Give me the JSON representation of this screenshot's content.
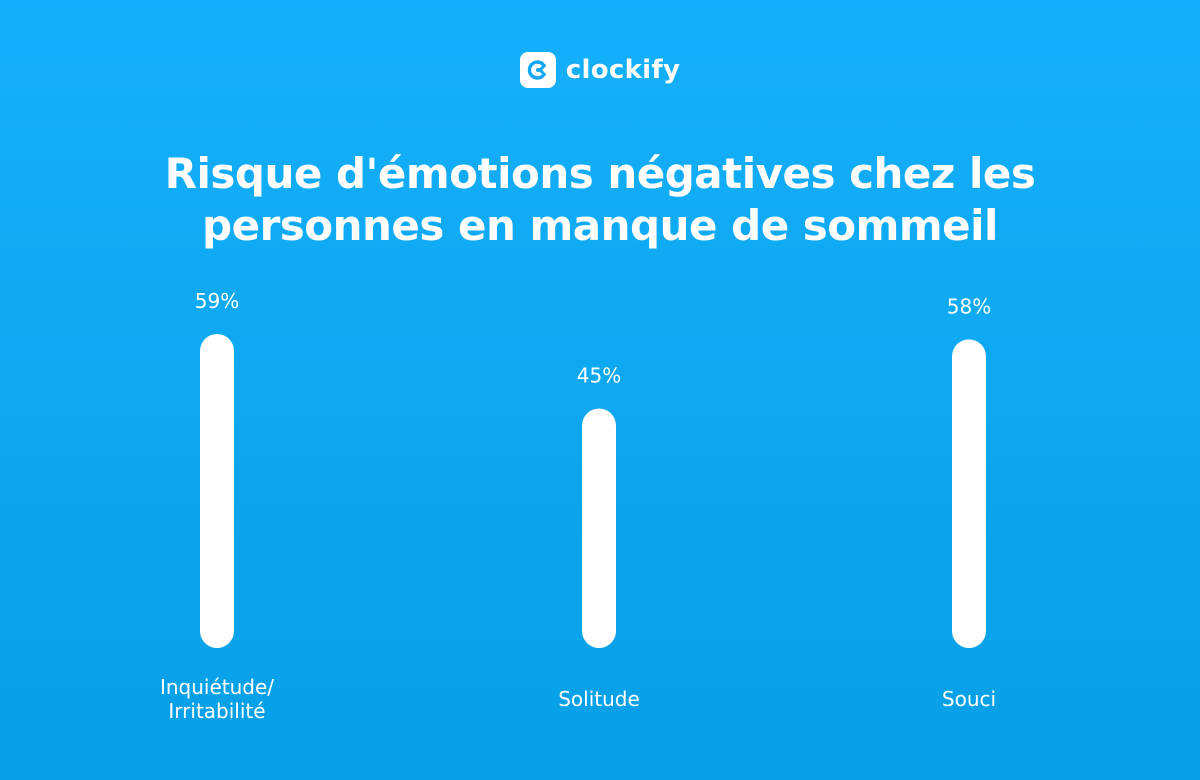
{
  "brand": {
    "name": "clockify",
    "icon": "clockify-logo-icon"
  },
  "colors": {
    "background_top": "#15b0fb",
    "background_bottom": "#079fe6",
    "bar": "#ffffff"
  },
  "chart_data": {
    "type": "bar",
    "title": "Risque d'émotions négatives chez les personnes en manque de sommeil",
    "categories": [
      [
        "Inquiétude/",
        "Irritabilité"
      ],
      [
        "Solitude"
      ],
      [
        "Souci"
      ]
    ],
    "values": [
      59,
      45,
      58
    ],
    "value_labels": [
      "59%",
      "45%",
      "58%"
    ],
    "unit": "%",
    "xlabel": "",
    "ylabel": "",
    "ylim": [
      0,
      59
    ],
    "grid": false
  }
}
